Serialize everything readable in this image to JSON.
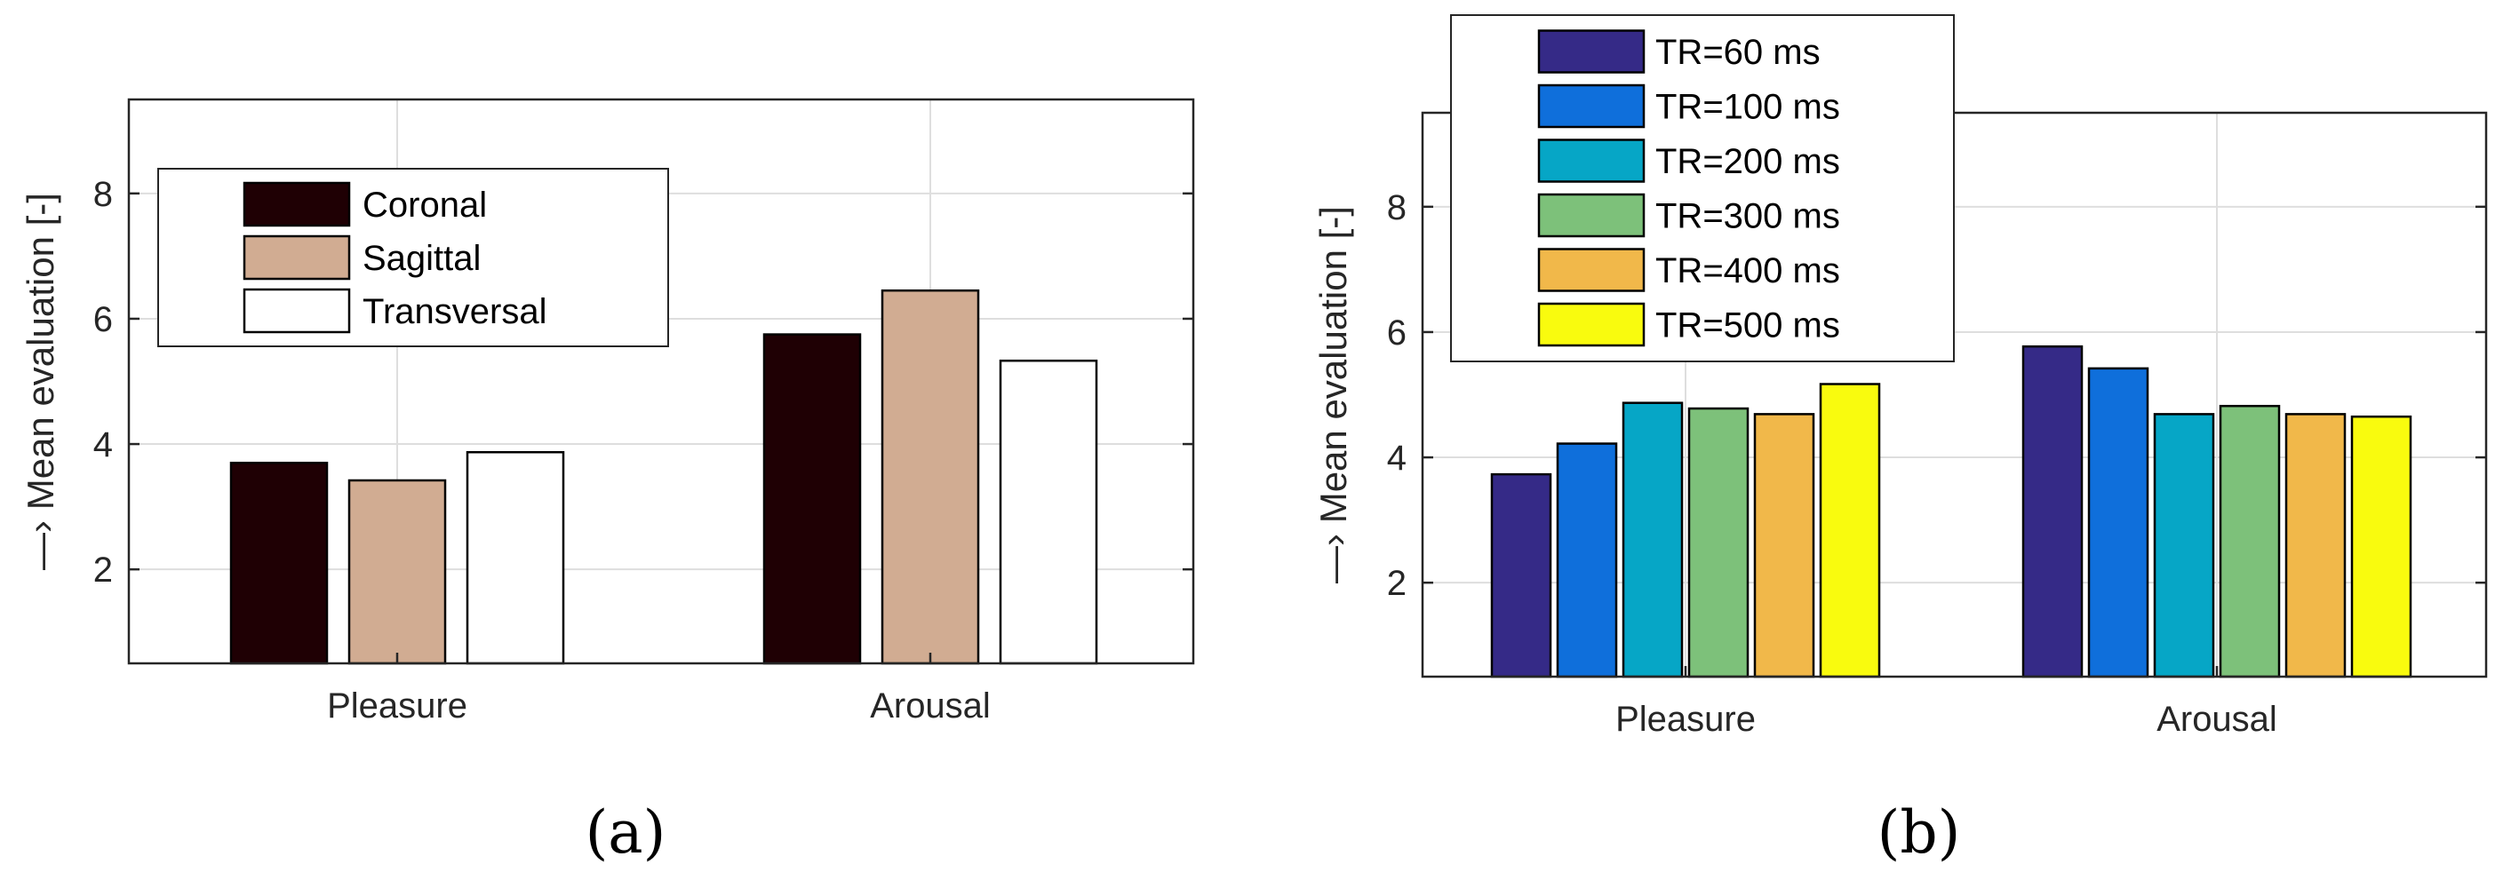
{
  "colors": {
    "background": "#ffffff",
    "axis": "#262626",
    "grid": "#dedede",
    "bar_edge": "#000000"
  },
  "chart_data": [
    {
      "type": "bar",
      "panel_label": "(a)",
      "title": "",
      "categories": [
        "Pleasure",
        "Arousal"
      ],
      "xlabel": "",
      "ylabel": "—› Mean evaluation [-]",
      "ylim": [
        0.5,
        9.5
      ],
      "yticks": [
        2,
        4,
        6,
        8
      ],
      "grid": true,
      "legend_position": "top-left",
      "series": [
        {
          "name": "Coronal",
          "color": "#1f0004",
          "values": [
            3.7,
            5.75
          ]
        },
        {
          "name": "Sagittal",
          "color": "#d1ac92",
          "values": [
            3.42,
            6.45
          ]
        },
        {
          "name": "Transversal",
          "color": "#ffffff",
          "values": [
            3.87,
            5.33
          ]
        }
      ]
    },
    {
      "type": "bar",
      "panel_label": "(b)",
      "title": "",
      "categories": [
        "Pleasure",
        "Arousal"
      ],
      "xlabel": "",
      "ylabel": "—› Mean evaluation [-]",
      "ylim": [
        0.5,
        9.5
      ],
      "yticks": [
        2,
        4,
        6,
        8
      ],
      "grid": true,
      "legend_position": "top-left outside",
      "series": [
        {
          "name": "TR=60 ms",
          "color": "#352a87",
          "values": [
            3.73,
            5.77
          ]
        },
        {
          "name": "TR=100 ms",
          "color": "#0f6fdb",
          "values": [
            4.22,
            5.42
          ]
        },
        {
          "name": "TR=200 ms",
          "color": "#06a6c6",
          "values": [
            4.87,
            4.69
          ]
        },
        {
          "name": "TR=300 ms",
          "color": "#7dc17a",
          "values": [
            4.78,
            4.82
          ]
        },
        {
          "name": "TR=400 ms",
          "color": "#f1b84a",
          "values": [
            4.69,
            4.69
          ]
        },
        {
          "name": "TR=500 ms",
          "color": "#f9fb0e",
          "values": [
            5.17,
            4.65
          ]
        }
      ]
    }
  ]
}
